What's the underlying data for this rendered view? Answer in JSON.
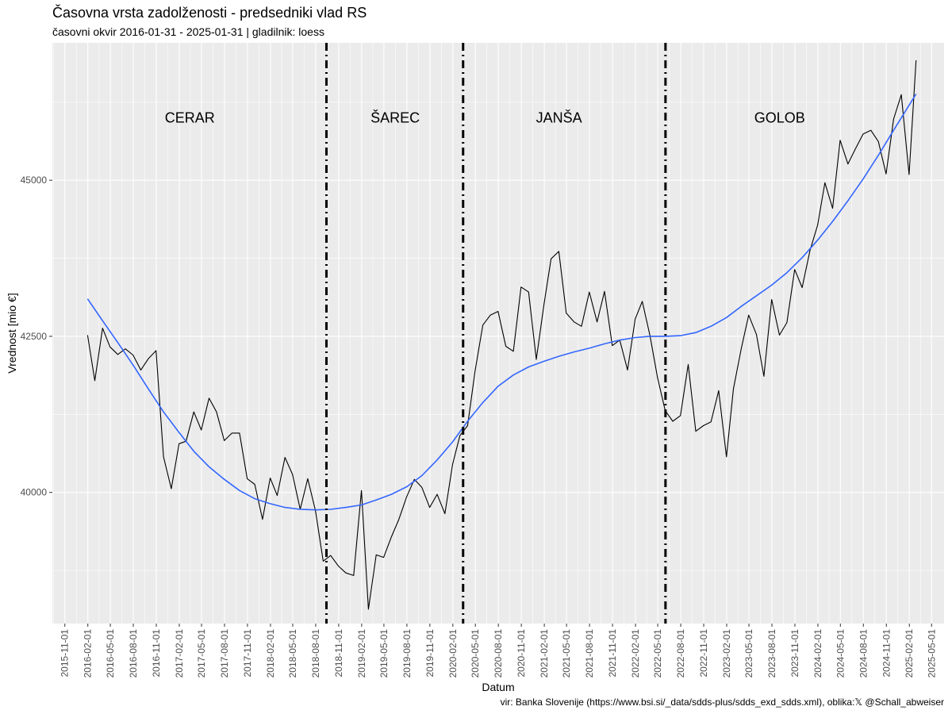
{
  "title": "Časovna vrsta zadolženosti - predsedniki vlad RS",
  "subtitle": "časovni okvir 2016-01-31 - 2025-01-31 | gladilnik: loess",
  "caption": "vir: Banka Slovenije (https://www.bsi.si/_data/sdds-plus/sdds_exd_sdds.xml), oblika:𝕏 @Schall_abweiser",
  "chart_data": {
    "type": "line",
    "xlabel": "Datum",
    "ylabel": "Vrednost [mio €]",
    "ylim": [
      37900,
      47200
    ],
    "xlim": [
      "2015-09-12",
      "2025-06-20"
    ],
    "y_ticks": [
      40000,
      42500,
      45000
    ],
    "x_ticks": [
      "2015-11-01",
      "2016-02-01",
      "2016-05-01",
      "2016-08-01",
      "2016-11-01",
      "2017-02-01",
      "2017-05-01",
      "2017-08-01",
      "2017-11-01",
      "2018-02-01",
      "2018-05-01",
      "2018-08-01",
      "2018-11-01",
      "2019-02-01",
      "2019-05-01",
      "2019-08-01",
      "2019-11-01",
      "2020-02-01",
      "2020-05-01",
      "2020-08-01",
      "2020-11-01",
      "2021-02-01",
      "2021-05-01",
      "2021-08-01",
      "2021-11-01",
      "2022-02-01",
      "2022-05-01",
      "2022-08-01",
      "2022-11-01",
      "2023-02-01",
      "2023-05-01",
      "2023-08-01",
      "2023-11-01",
      "2024-02-01",
      "2024-05-01",
      "2024-08-01",
      "2024-11-01",
      "2025-02-01",
      "2025-05-01"
    ],
    "grid": true,
    "series": [
      {
        "type": "line",
        "color": "#000000",
        "points": [
          [
            "2016-01-31",
            42520
          ],
          [
            "2016-02-29",
            41790
          ],
          [
            "2016-03-31",
            42630
          ],
          [
            "2016-04-30",
            42330
          ],
          [
            "2016-05-31",
            42210
          ],
          [
            "2016-06-30",
            42300
          ],
          [
            "2016-07-31",
            42200
          ],
          [
            "2016-08-31",
            41960
          ],
          [
            "2016-09-30",
            42140
          ],
          [
            "2016-10-31",
            42270
          ],
          [
            "2016-11-30",
            40570
          ],
          [
            "2016-12-31",
            40060
          ],
          [
            "2017-01-31",
            40780
          ],
          [
            "2017-02-28",
            40820
          ],
          [
            "2017-03-31",
            41290
          ],
          [
            "2017-04-30",
            41000
          ],
          [
            "2017-05-31",
            41510
          ],
          [
            "2017-06-30",
            41290
          ],
          [
            "2017-07-31",
            40830
          ],
          [
            "2017-08-31",
            40950
          ],
          [
            "2017-09-30",
            40950
          ],
          [
            "2017-10-31",
            40220
          ],
          [
            "2017-11-30",
            40130
          ],
          [
            "2017-12-31",
            39570
          ],
          [
            "2018-01-31",
            40230
          ],
          [
            "2018-02-28",
            39950
          ],
          [
            "2018-03-31",
            40560
          ],
          [
            "2018-04-30",
            40290
          ],
          [
            "2018-05-31",
            39730
          ],
          [
            "2018-06-30",
            40220
          ],
          [
            "2018-07-31",
            39710
          ],
          [
            "2018-08-31",
            38900
          ],
          [
            "2018-09-30",
            38990
          ],
          [
            "2018-10-31",
            38820
          ],
          [
            "2018-11-30",
            38710
          ],
          [
            "2018-12-31",
            38670
          ],
          [
            "2019-01-31",
            40030
          ],
          [
            "2019-02-28",
            38130
          ],
          [
            "2019-03-31",
            39000
          ],
          [
            "2019-04-30",
            38960
          ],
          [
            "2019-05-31",
            39290
          ],
          [
            "2019-06-30",
            39570
          ],
          [
            "2019-07-31",
            39930
          ],
          [
            "2019-08-31",
            40210
          ],
          [
            "2019-09-30",
            40080
          ],
          [
            "2019-10-31",
            39760
          ],
          [
            "2019-11-30",
            39970
          ],
          [
            "2019-12-31",
            39660
          ],
          [
            "2020-01-31",
            40450
          ],
          [
            "2020-02-29",
            40910
          ],
          [
            "2020-03-31",
            41070
          ],
          [
            "2020-04-30",
            41950
          ],
          [
            "2020-05-31",
            42680
          ],
          [
            "2020-06-30",
            42840
          ],
          [
            "2020-07-31",
            42900
          ],
          [
            "2020-08-31",
            42340
          ],
          [
            "2020-09-30",
            42260
          ],
          [
            "2020-10-31",
            43290
          ],
          [
            "2020-11-30",
            43210
          ],
          [
            "2020-12-31",
            42130
          ],
          [
            "2021-01-31",
            43020
          ],
          [
            "2021-02-28",
            43740
          ],
          [
            "2021-03-31",
            43860
          ],
          [
            "2021-04-30",
            42870
          ],
          [
            "2021-05-31",
            42730
          ],
          [
            "2021-06-30",
            42660
          ],
          [
            "2021-07-31",
            43210
          ],
          [
            "2021-08-31",
            42730
          ],
          [
            "2021-09-30",
            43220
          ],
          [
            "2021-10-31",
            42350
          ],
          [
            "2021-11-30",
            42440
          ],
          [
            "2021-12-31",
            41960
          ],
          [
            "2022-01-31",
            42780
          ],
          [
            "2022-02-28",
            43060
          ],
          [
            "2022-03-31",
            42510
          ],
          [
            "2022-04-30",
            41840
          ],
          [
            "2022-05-31",
            41310
          ],
          [
            "2022-06-30",
            41140
          ],
          [
            "2022-07-31",
            41230
          ],
          [
            "2022-08-31",
            42050
          ],
          [
            "2022-09-30",
            40980
          ],
          [
            "2022-10-31",
            41070
          ],
          [
            "2022-11-30",
            41130
          ],
          [
            "2022-12-31",
            41630
          ],
          [
            "2023-01-31",
            40570
          ],
          [
            "2023-02-28",
            41660
          ],
          [
            "2023-03-31",
            42300
          ],
          [
            "2023-04-30",
            42840
          ],
          [
            "2023-05-31",
            42530
          ],
          [
            "2023-06-30",
            41860
          ],
          [
            "2023-07-31",
            43090
          ],
          [
            "2023-08-31",
            42520
          ],
          [
            "2023-09-30",
            42720
          ],
          [
            "2023-10-31",
            43570
          ],
          [
            "2023-11-30",
            43280
          ],
          [
            "2023-12-31",
            43870
          ],
          [
            "2024-01-31",
            44280
          ],
          [
            "2024-02-29",
            44960
          ],
          [
            "2024-03-31",
            44550
          ],
          [
            "2024-04-30",
            45640
          ],
          [
            "2024-05-31",
            45260
          ],
          [
            "2024-06-30",
            45500
          ],
          [
            "2024-07-31",
            45740
          ],
          [
            "2024-08-31",
            45800
          ],
          [
            "2024-09-30",
            45620
          ],
          [
            "2024-10-31",
            45100
          ],
          [
            "2024-11-30",
            45980
          ],
          [
            "2024-12-31",
            46370
          ],
          [
            "2025-01-31",
            45090
          ],
          [
            "2025-02-28",
            46920
          ]
        ]
      },
      {
        "type": "smooth",
        "color": "#3366ff",
        "points": [
          [
            "2016-01-31",
            43100
          ],
          [
            "2016-03-31",
            42750
          ],
          [
            "2016-05-31",
            42400
          ],
          [
            "2016-07-31",
            42040
          ],
          [
            "2016-09-30",
            41660
          ],
          [
            "2016-11-30",
            41290
          ],
          [
            "2017-01-31",
            40960
          ],
          [
            "2017-03-31",
            40660
          ],
          [
            "2017-05-31",
            40410
          ],
          [
            "2017-07-31",
            40210
          ],
          [
            "2017-09-30",
            40030
          ],
          [
            "2017-11-30",
            39900
          ],
          [
            "2018-01-31",
            39820
          ],
          [
            "2018-03-31",
            39760
          ],
          [
            "2018-05-31",
            39730
          ],
          [
            "2018-07-31",
            39720
          ],
          [
            "2018-09-30",
            39730
          ],
          [
            "2018-11-30",
            39760
          ],
          [
            "2019-01-31",
            39800
          ],
          [
            "2019-03-31",
            39880
          ],
          [
            "2019-05-31",
            39970
          ],
          [
            "2019-07-31",
            40090
          ],
          [
            "2019-09-30",
            40270
          ],
          [
            "2019-11-30",
            40520
          ],
          [
            "2020-01-31",
            40810
          ],
          [
            "2020-03-31",
            41140
          ],
          [
            "2020-05-31",
            41440
          ],
          [
            "2020-07-31",
            41700
          ],
          [
            "2020-09-30",
            41880
          ],
          [
            "2020-11-30",
            42010
          ],
          [
            "2021-01-31",
            42100
          ],
          [
            "2021-03-31",
            42180
          ],
          [
            "2021-05-31",
            42250
          ],
          [
            "2021-07-31",
            42310
          ],
          [
            "2021-09-30",
            42380
          ],
          [
            "2021-11-30",
            42440
          ],
          [
            "2022-01-31",
            42480
          ],
          [
            "2022-03-31",
            42500
          ],
          [
            "2022-05-31",
            42500
          ],
          [
            "2022-07-31",
            42510
          ],
          [
            "2022-09-30",
            42560
          ],
          [
            "2022-11-30",
            42660
          ],
          [
            "2023-01-31",
            42800
          ],
          [
            "2023-03-31",
            42980
          ],
          [
            "2023-05-31",
            43150
          ],
          [
            "2023-07-31",
            43320
          ],
          [
            "2023-09-30",
            43520
          ],
          [
            "2023-11-30",
            43760
          ],
          [
            "2024-01-31",
            44040
          ],
          [
            "2024-03-31",
            44340
          ],
          [
            "2024-05-31",
            44670
          ],
          [
            "2024-07-31",
            45020
          ],
          [
            "2024-09-30",
            45400
          ],
          [
            "2024-11-30",
            45800
          ],
          [
            "2025-01-31",
            46200
          ],
          [
            "2025-02-28",
            46380
          ]
        ]
      }
    ],
    "vlines": [
      "2018-09-13",
      "2020-03-13",
      "2022-06-01"
    ],
    "vline_style": "dashdot",
    "eras": [
      {
        "label": "CERAR",
        "x": "2017-03-15",
        "y": 46000
      },
      {
        "label": "ŠAREC",
        "x": "2019-06-15",
        "y": 46000
      },
      {
        "label": "JANŠA",
        "x": "2021-04-01",
        "y": 46000
      },
      {
        "label": "GOLOB",
        "x": "2023-09-01",
        "y": 46000
      }
    ]
  }
}
